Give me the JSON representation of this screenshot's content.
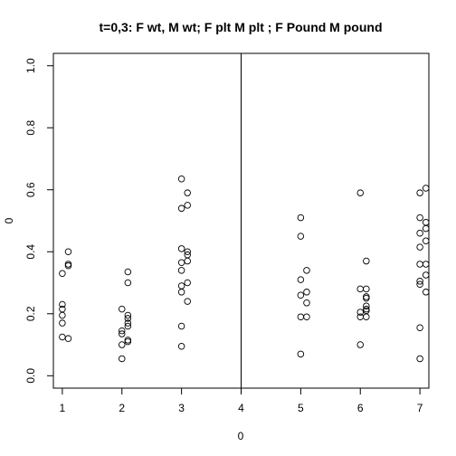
{
  "chart_data": {
    "type": "scatter",
    "title": "t=0,3: F wt, M wt; F plt  M plt  ; F Pound  M pound",
    "xlabel": "0",
    "ylabel": "0",
    "xlim": [
      0.85,
      7.15
    ],
    "ylim": [
      -0.04,
      1.04
    ],
    "xticks": [
      1,
      2,
      3,
      4,
      5,
      6,
      7
    ],
    "yticks": [
      0.0,
      0.2,
      0.4,
      0.6,
      0.8,
      1.0
    ],
    "ytick_labels": [
      "0.0",
      "0.2",
      "0.4",
      "0.6",
      "0.8",
      "1.0"
    ],
    "vline_x": 4,
    "grid": false,
    "marker": "open-circle",
    "points": [
      {
        "x": 1.0,
        "y": 0.33
      },
      {
        "x": 1.0,
        "y": 0.23
      },
      {
        "x": 1.0,
        "y": 0.215
      },
      {
        "x": 1.0,
        "y": 0.195
      },
      {
        "x": 1.0,
        "y": 0.17
      },
      {
        "x": 1.0,
        "y": 0.125
      },
      {
        "x": 1.1,
        "y": 0.4
      },
      {
        "x": 1.1,
        "y": 0.36
      },
      {
        "x": 1.1,
        "y": 0.355
      },
      {
        "x": 1.1,
        "y": 0.12
      },
      {
        "x": 2.0,
        "y": 0.215
      },
      {
        "x": 2.0,
        "y": 0.145
      },
      {
        "x": 2.0,
        "y": 0.135
      },
      {
        "x": 2.0,
        "y": 0.1
      },
      {
        "x": 2.0,
        "y": 0.055
      },
      {
        "x": 2.1,
        "y": 0.335
      },
      {
        "x": 2.1,
        "y": 0.3
      },
      {
        "x": 2.1,
        "y": 0.195
      },
      {
        "x": 2.1,
        "y": 0.185
      },
      {
        "x": 2.1,
        "y": 0.17
      },
      {
        "x": 2.1,
        "y": 0.16
      },
      {
        "x": 2.1,
        "y": 0.115
      },
      {
        "x": 2.1,
        "y": 0.11
      },
      {
        "x": 3.0,
        "y": 0.635
      },
      {
        "x": 3.0,
        "y": 0.54
      },
      {
        "x": 3.0,
        "y": 0.41
      },
      {
        "x": 3.0,
        "y": 0.365
      },
      {
        "x": 3.0,
        "y": 0.34
      },
      {
        "x": 3.0,
        "y": 0.29
      },
      {
        "x": 3.0,
        "y": 0.27
      },
      {
        "x": 3.0,
        "y": 0.16
      },
      {
        "x": 3.0,
        "y": 0.095
      },
      {
        "x": 3.1,
        "y": 0.59
      },
      {
        "x": 3.1,
        "y": 0.55
      },
      {
        "x": 3.1,
        "y": 0.4
      },
      {
        "x": 3.1,
        "y": 0.39
      },
      {
        "x": 3.1,
        "y": 0.37
      },
      {
        "x": 3.1,
        "y": 0.3
      },
      {
        "x": 3.1,
        "y": 0.24
      },
      {
        "x": 5.0,
        "y": 0.51
      },
      {
        "x": 5.0,
        "y": 0.45
      },
      {
        "x": 5.0,
        "y": 0.31
      },
      {
        "x": 5.0,
        "y": 0.26
      },
      {
        "x": 5.0,
        "y": 0.19
      },
      {
        "x": 5.0,
        "y": 0.07
      },
      {
        "x": 5.1,
        "y": 0.34
      },
      {
        "x": 5.1,
        "y": 0.27
      },
      {
        "x": 5.1,
        "y": 0.235
      },
      {
        "x": 5.1,
        "y": 0.19
      },
      {
        "x": 6.0,
        "y": 0.59
      },
      {
        "x": 6.0,
        "y": 0.28
      },
      {
        "x": 6.0,
        "y": 0.205
      },
      {
        "x": 6.0,
        "y": 0.19
      },
      {
        "x": 6.0,
        "y": 0.1
      },
      {
        "x": 6.1,
        "y": 0.37
      },
      {
        "x": 6.1,
        "y": 0.28
      },
      {
        "x": 6.1,
        "y": 0.255
      },
      {
        "x": 6.1,
        "y": 0.25
      },
      {
        "x": 6.1,
        "y": 0.225
      },
      {
        "x": 6.1,
        "y": 0.215
      },
      {
        "x": 6.1,
        "y": 0.21
      },
      {
        "x": 6.1,
        "y": 0.19
      },
      {
        "x": 7.0,
        "y": 0.59
      },
      {
        "x": 7.0,
        "y": 0.51
      },
      {
        "x": 7.0,
        "y": 0.46
      },
      {
        "x": 7.0,
        "y": 0.415
      },
      {
        "x": 7.0,
        "y": 0.36
      },
      {
        "x": 7.0,
        "y": 0.305
      },
      {
        "x": 7.0,
        "y": 0.295
      },
      {
        "x": 7.0,
        "y": 0.155
      },
      {
        "x": 7.0,
        "y": 0.055
      },
      {
        "x": 7.1,
        "y": 0.605
      },
      {
        "x": 7.1,
        "y": 0.495
      },
      {
        "x": 7.1,
        "y": 0.475
      },
      {
        "x": 7.1,
        "y": 0.435
      },
      {
        "x": 7.1,
        "y": 0.36
      },
      {
        "x": 7.1,
        "y": 0.325
      },
      {
        "x": 7.1,
        "y": 0.27
      }
    ]
  }
}
